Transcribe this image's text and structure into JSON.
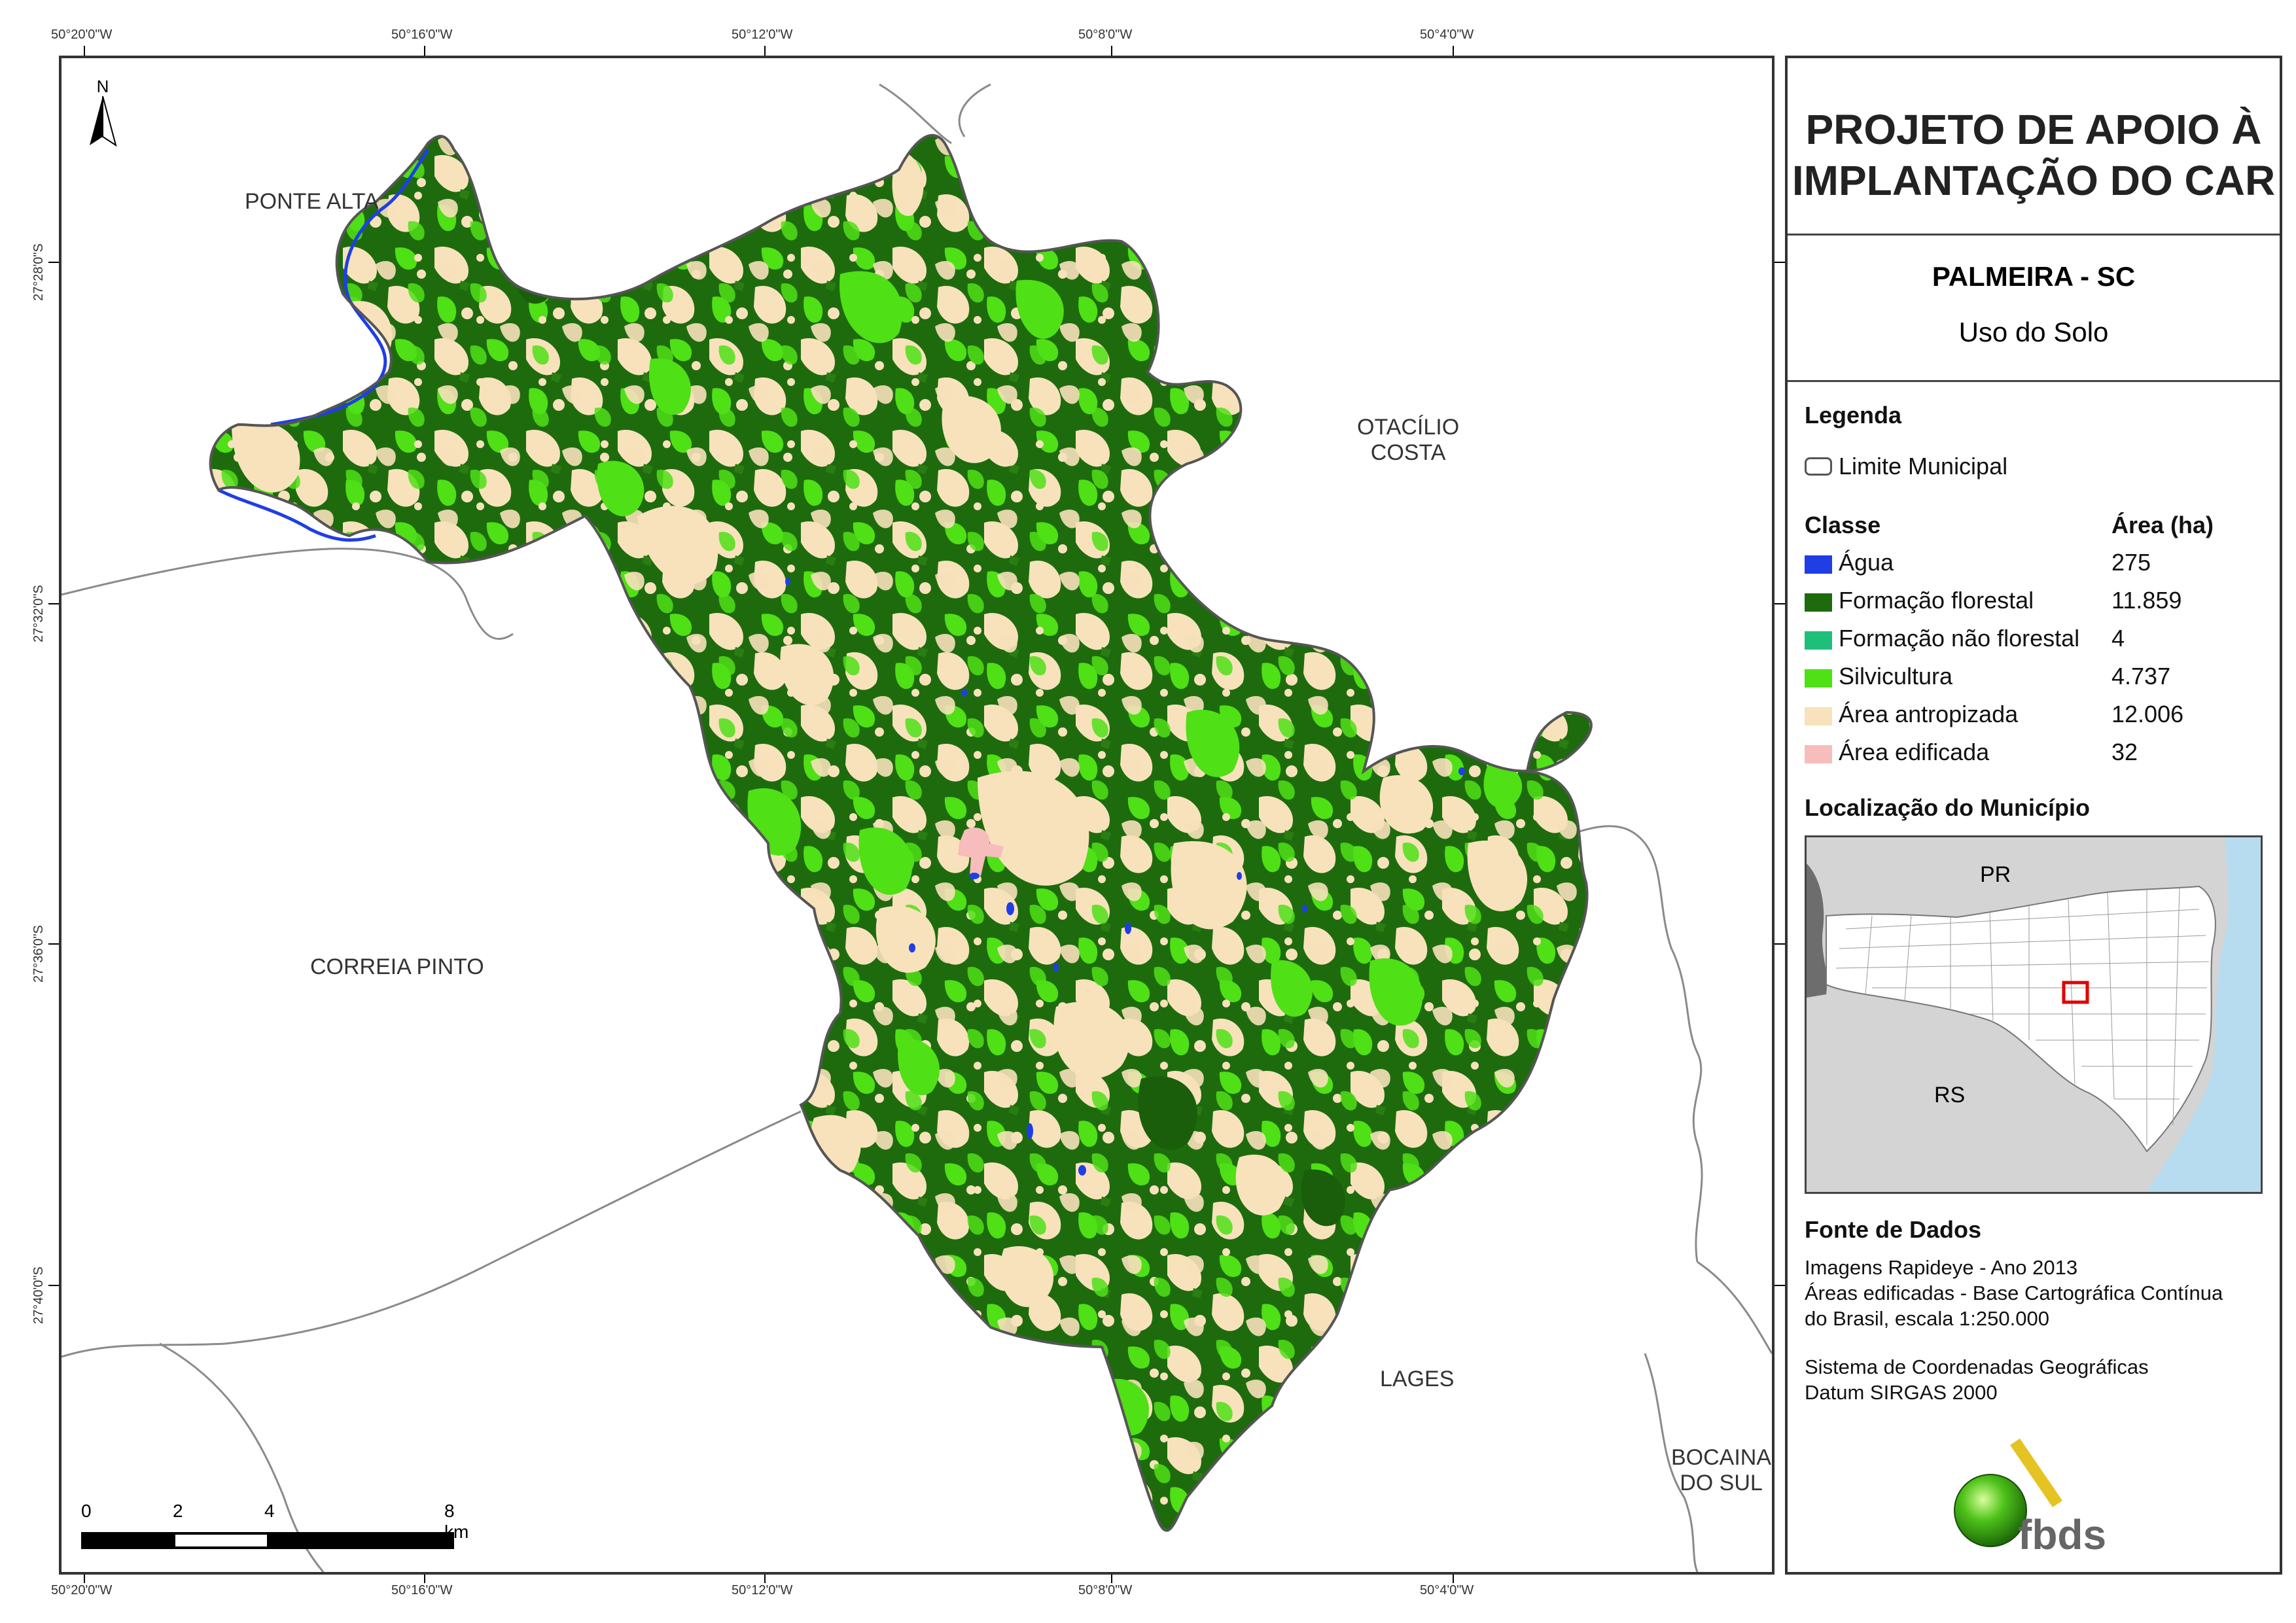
{
  "coordinates": {
    "top": [
      "50°20'0\"W",
      "50°16'0\"W",
      "50°12'0\"W",
      "50°8'0\"W",
      "50°4'0\"W"
    ],
    "bottom": [
      "50°20'0\"W",
      "50°16'0\"W",
      "50°12'0\"W",
      "50°8'0\"W",
      "50°4'0\"W"
    ],
    "left": [
      "27°28'0\"S",
      "27°32'0\"S",
      "27°36'0\"S",
      "27°40'0\"S"
    ]
  },
  "map": {
    "north_label": "N",
    "places": {
      "ponte_alta": "PONTE ALTA",
      "otacilio_line1": "OTACÍLIO",
      "otacilio_line2": "COSTA",
      "correia_pinto": "CORREIA PINTO",
      "lages": "LAGES",
      "bocaina_line1": "BOCAINA",
      "bocaina_line2": "DO SUL"
    },
    "scale_bar": {
      "labels": [
        "0",
        "2",
        "4",
        "8 km"
      ]
    }
  },
  "panel": {
    "title_line1": "PROJETO DE APOIO À",
    "title_line2": "IMPLANTAÇÃO DO CAR",
    "municipality": "PALMEIRA - SC",
    "theme": "Uso do Solo",
    "legend": {
      "heading": "Legenda",
      "boundary_label": "Limite Municipal",
      "class_header": "Classe",
      "area_header": "Área (ha)",
      "classes": [
        {
          "label": "Água",
          "area": "275",
          "color": "#1f3ee6"
        },
        {
          "label": "Formação florestal",
          "area": "11.859",
          "color": "#1e6b0e"
        },
        {
          "label": "Formação não florestal",
          "area": "4",
          "color": "#1ebf7a"
        },
        {
          "label": "Silvicultura",
          "area": "4.737",
          "color": "#4fe016"
        },
        {
          "label": "Área antropizada",
          "area": "12.006",
          "color": "#f7e2bb"
        },
        {
          "label": "Área edificada",
          "area": "32",
          "color": "#f7bcbc"
        }
      ]
    },
    "location": {
      "heading": "Localização do Município",
      "pr": "PR",
      "rs": "RS"
    },
    "sources": {
      "heading": "Fonte de Dados",
      "lines": [
        "Imagens Rapideye - Ano 2013",
        "Áreas edificadas - Base Cartográfica Contínua",
        "do Brasil, escala 1:250.000"
      ],
      "crs_lines": [
        "Sistema de Coordenadas Geográficas",
        "Datum SIRGAS 2000"
      ]
    },
    "logo_text": "fbds"
  }
}
